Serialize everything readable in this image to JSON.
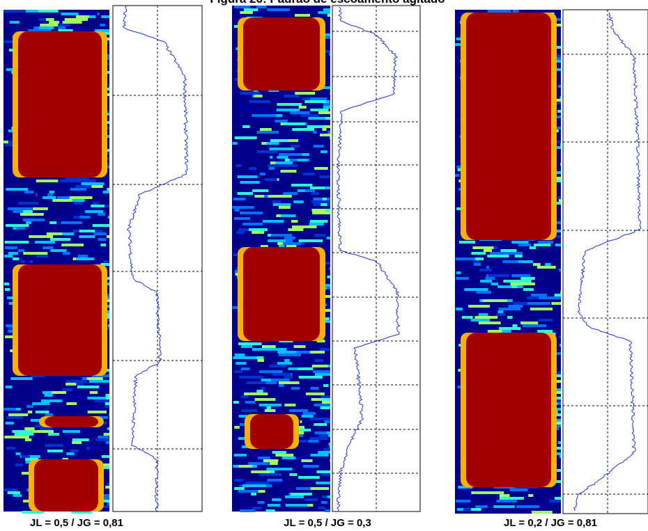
{
  "header": {
    "title": "Figura 26: Padrão de escoamento agitado"
  },
  "panels": [
    {
      "caption": "JL = 0,5 / JG = 0,81"
    },
    {
      "caption": "JL = 0,5 / JG = 0,3"
    },
    {
      "caption": "JL = 0,2 / JG = 0,81"
    }
  ]
}
